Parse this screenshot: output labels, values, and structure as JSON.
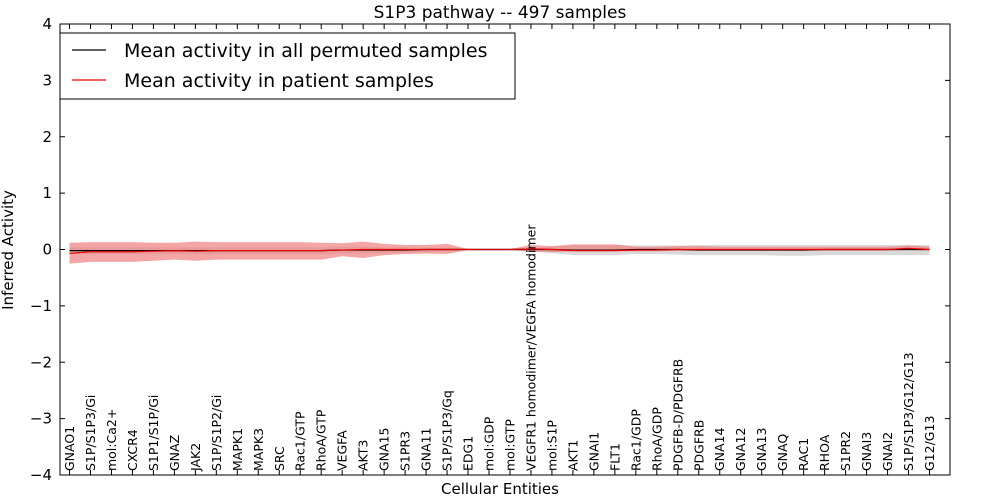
{
  "chart_data": {
    "type": "line",
    "title": "S1P3 pathway -- 497 samples",
    "xlabel": "Cellular Entities",
    "ylabel": "Inferred Activity",
    "ylim": [
      -4,
      4
    ],
    "yticks": [
      4,
      3,
      2,
      1,
      0,
      -1,
      -2,
      -3,
      -4
    ],
    "ytick_labels": [
      "4",
      "3",
      "2",
      "1",
      "0",
      "−1",
      "−2",
      "−3",
      "−4"
    ],
    "grid": false,
    "legend": {
      "position": "top-left",
      "entries": [
        {
          "label": "Mean activity in all permuted samples",
          "color": "#000000"
        },
        {
          "label": "Mean activity in patient samples",
          "color": "#e60000"
        }
      ]
    },
    "categories": [
      "GNAO1",
      "S1P/S1P3/Gi",
      "mol:Ca2+",
      "CXCR4",
      "S1P1/S1P/Gi",
      "GNAZ",
      "JAK2",
      "S1P/S1P2/Gi",
      "MAPK1",
      "MAPK3",
      "SRC",
      "Rac1/GTP",
      "RhoA/GTP",
      "VEGFA",
      "AKT3",
      "GNA15",
      "S1PR3",
      "GNA11",
      "S1P/S1P3/Gq",
      "EDG1",
      "mol:GDP",
      "mol:GTP",
      "VEGFR1 homodimer/VEGFA homodimer",
      "mol:S1P",
      "AKT1",
      "GNAI1",
      "FLT1",
      "Rac1/GDP",
      "RhoA/GDP",
      "PDGFB-D/PDGFRB",
      "PDGFRB",
      "GNA14",
      "GNA12",
      "GNA13",
      "GNAQ",
      "RAC1",
      "RHOA",
      "S1PR2",
      "GNAI3",
      "GNAI2",
      "S1P/S1P3/G12/G13",
      "G12/G13"
    ],
    "series": [
      {
        "name": "Mean activity in all permuted samples",
        "color": "#000000",
        "values": [
          -0.02,
          -0.02,
          -0.02,
          -0.02,
          -0.02,
          -0.02,
          -0.02,
          -0.02,
          -0.02,
          -0.02,
          -0.02,
          -0.02,
          -0.02,
          -0.01,
          -0.01,
          -0.01,
          -0.01,
          0.0,
          0.0,
          0.0,
          0.0,
          0.0,
          0.0,
          0.0,
          -0.01,
          -0.01,
          -0.01,
          0.0,
          0.0,
          0.0,
          -0.01,
          -0.01,
          -0.01,
          -0.01,
          -0.01,
          -0.01,
          0.0,
          0.0,
          0.0,
          0.0,
          0.0,
          0.0
        ],
        "lower": [
          -0.08,
          -0.08,
          -0.08,
          -0.08,
          -0.08,
          -0.08,
          -0.08,
          -0.08,
          -0.08,
          -0.08,
          -0.08,
          -0.08,
          -0.08,
          -0.07,
          -0.07,
          -0.06,
          -0.05,
          -0.04,
          -0.03,
          -0.02,
          -0.02,
          -0.02,
          -0.02,
          -0.06,
          -0.1,
          -0.1,
          -0.1,
          -0.08,
          -0.08,
          -0.09,
          -0.1,
          -0.1,
          -0.1,
          -0.1,
          -0.11,
          -0.11,
          -0.1,
          -0.1,
          -0.1,
          -0.1,
          -0.1,
          -0.1
        ],
        "upper": [
          0.04,
          0.04,
          0.04,
          0.04,
          0.04,
          0.04,
          0.04,
          0.04,
          0.04,
          0.04,
          0.04,
          0.04,
          0.04,
          0.05,
          0.05,
          0.04,
          0.04,
          0.03,
          0.03,
          0.02,
          0.02,
          0.02,
          0.02,
          0.05,
          0.08,
          0.08,
          0.08,
          0.07,
          0.07,
          0.07,
          0.08,
          0.08,
          0.08,
          0.08,
          0.08,
          0.08,
          0.08,
          0.08,
          0.08,
          0.08,
          0.08,
          0.08
        ]
      },
      {
        "name": "Mean activity in patient samples",
        "color": "#e60000",
        "values": [
          -0.07,
          -0.04,
          -0.04,
          -0.04,
          -0.03,
          -0.02,
          -0.03,
          -0.02,
          -0.02,
          -0.02,
          -0.02,
          -0.02,
          -0.02,
          -0.01,
          0.0,
          0.0,
          0.0,
          0.0,
          0.0,
          0.0,
          0.0,
          0.0,
          0.01,
          0.0,
          -0.02,
          -0.02,
          -0.02,
          -0.01,
          -0.01,
          0.0,
          0.0,
          0.0,
          0.0,
          0.0,
          0.0,
          0.0,
          0.0,
          0.0,
          0.0,
          0.0,
          0.02,
          0.0
        ],
        "lower": [
          -0.25,
          -0.22,
          -0.22,
          -0.22,
          -0.2,
          -0.18,
          -0.2,
          -0.18,
          -0.18,
          -0.18,
          -0.18,
          -0.18,
          -0.18,
          -0.12,
          -0.15,
          -0.1,
          -0.08,
          -0.07,
          -0.08,
          -0.01,
          -0.01,
          -0.01,
          -0.04,
          -0.05,
          -0.03,
          -0.03,
          -0.03,
          -0.03,
          -0.03,
          -0.02,
          -0.02,
          -0.02,
          -0.02,
          -0.02,
          -0.02,
          -0.02,
          -0.02,
          -0.02,
          -0.02,
          -0.02,
          -0.01,
          -0.02
        ],
        "upper": [
          0.12,
          0.13,
          0.13,
          0.13,
          0.12,
          0.12,
          0.14,
          0.13,
          0.13,
          0.13,
          0.13,
          0.13,
          0.12,
          0.11,
          0.14,
          0.1,
          0.08,
          0.08,
          0.1,
          0.01,
          0.01,
          0.01,
          0.08,
          0.06,
          0.09,
          0.09,
          0.09,
          0.05,
          0.05,
          0.06,
          0.06,
          0.05,
          0.05,
          0.05,
          0.05,
          0.05,
          0.05,
          0.05,
          0.05,
          0.05,
          0.07,
          0.05
        ]
      }
    ]
  }
}
